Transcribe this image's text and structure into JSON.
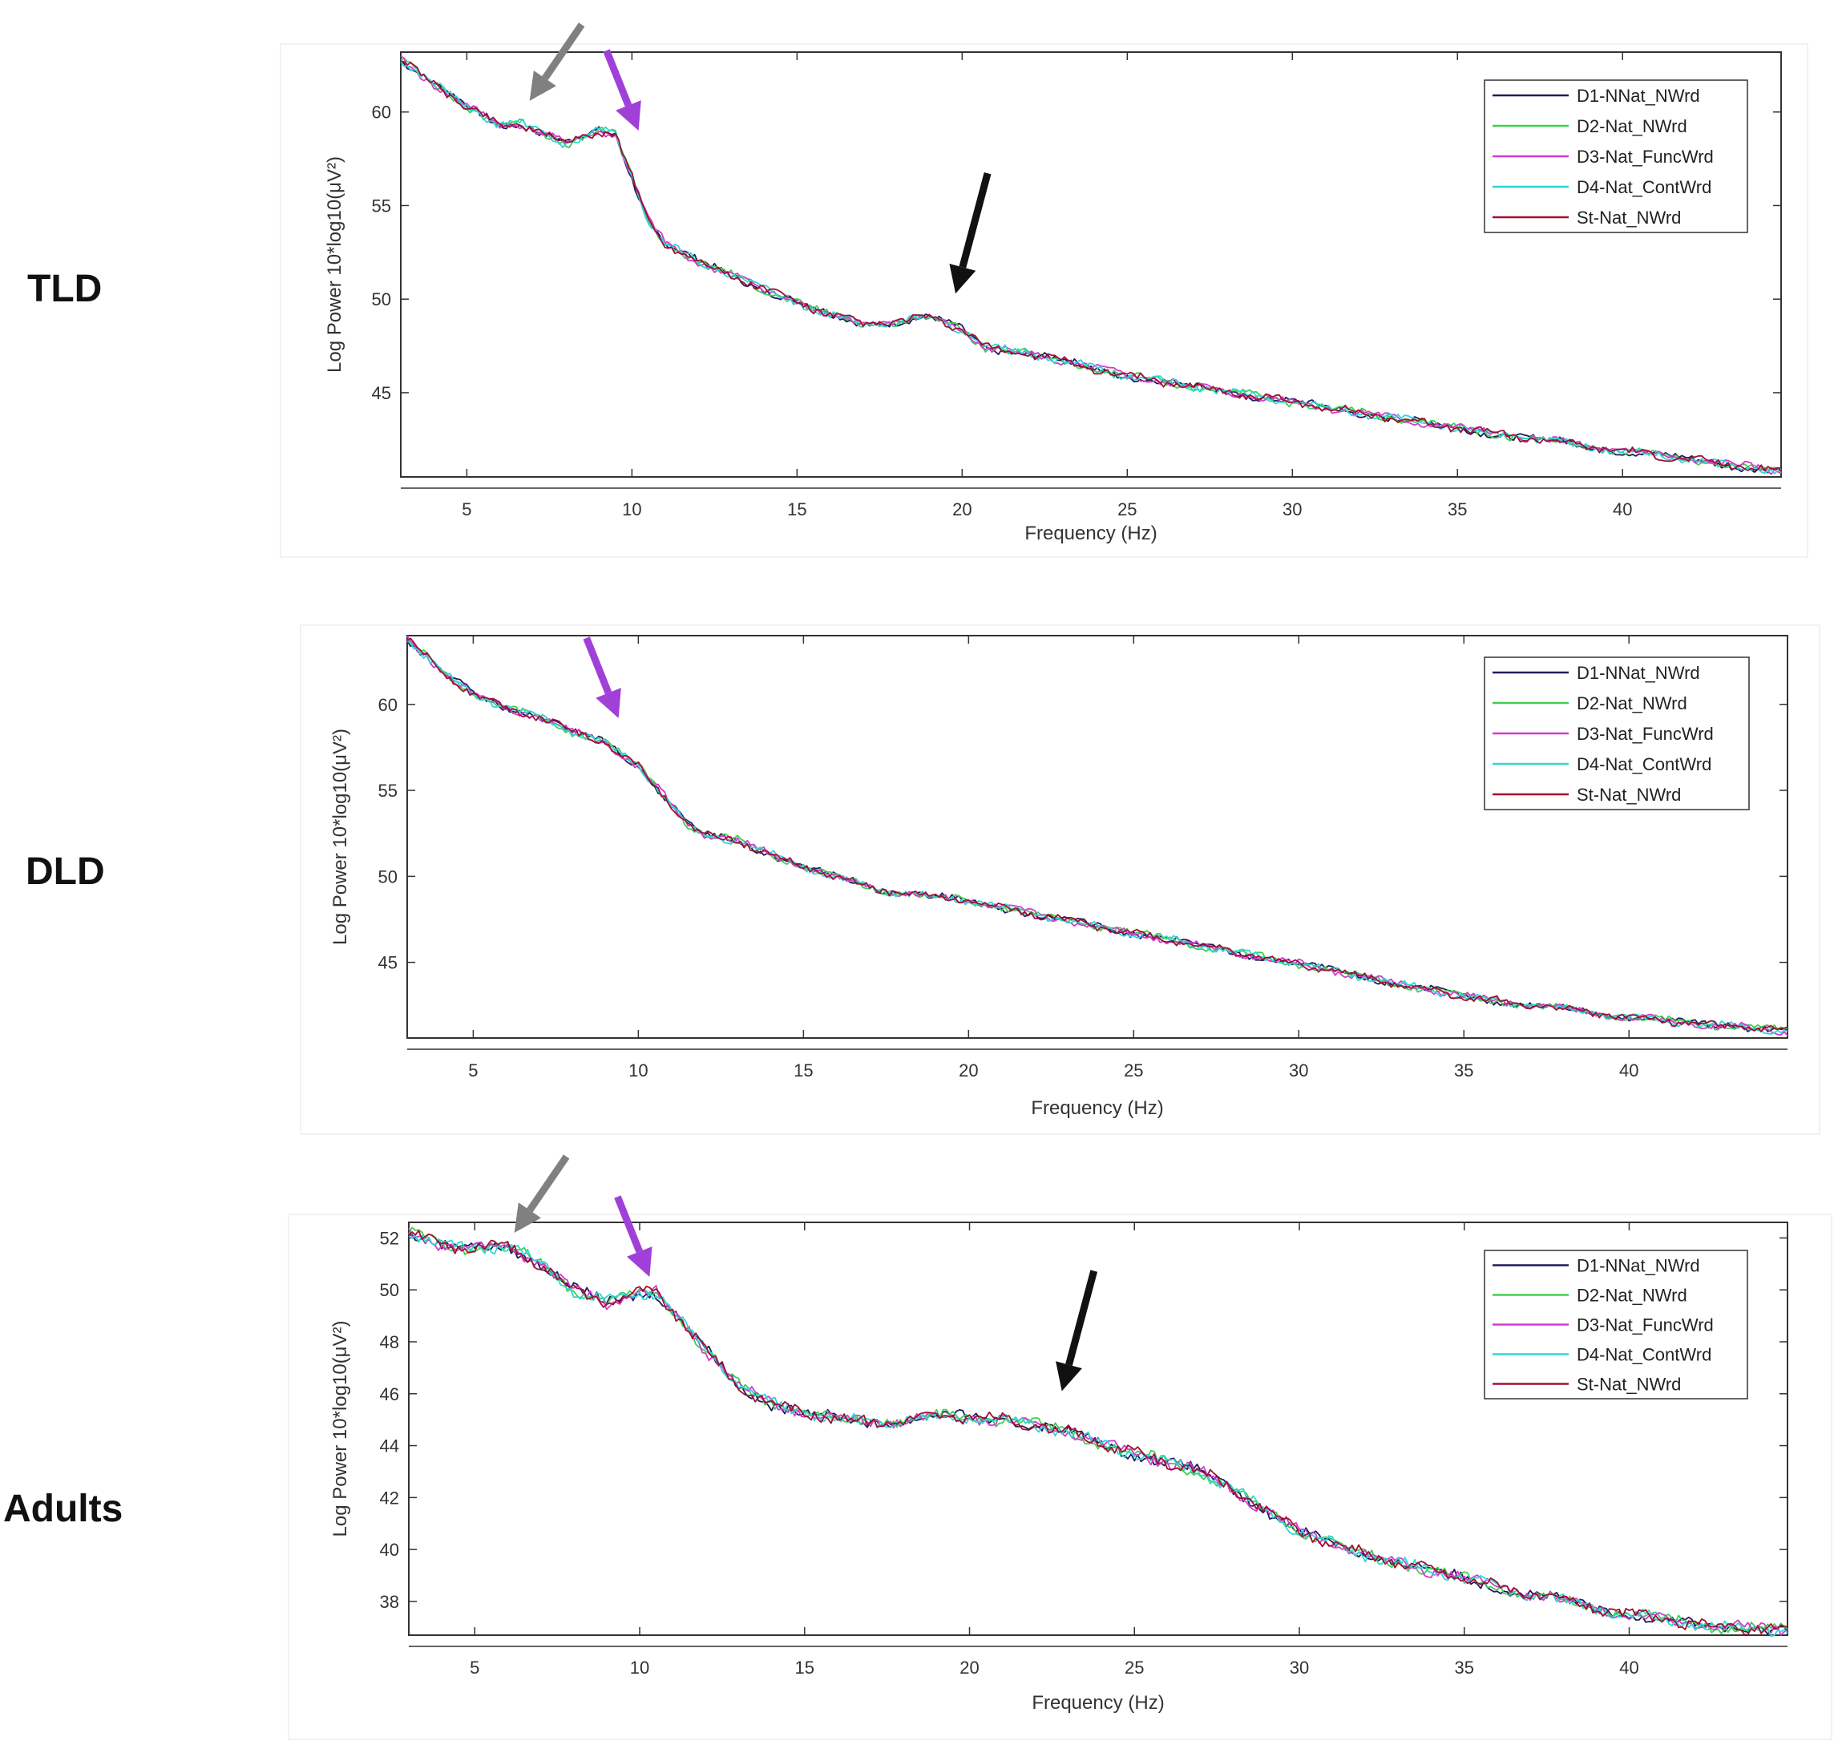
{
  "group_labels": {
    "tld": "TLD",
    "dld": "DLD",
    "adults": "Adults"
  },
  "colors": {
    "D1-NNat_NWrd": "#1c1c5c",
    "D2-Nat_NWrd": "#3fcf4f",
    "D3-Nat_FuncWrd": "#d23bd2",
    "D4-Nat_ContWrd": "#2fd6d6",
    "St-Nat_NWrd": "#a01030",
    "arrow_gray": "#808080",
    "arrow_purple": "#a040d8",
    "arrow_black": "#111111"
  },
  "chart_data": [
    {
      "id": "tld",
      "type": "line",
      "group": "TLD",
      "xlabel": "Frequency (Hz)",
      "ylabel": "Log Power 10*log10(μV²)",
      "xlim": [
        3,
        44.8
      ],
      "ylim": [
        40.5,
        63.2
      ],
      "xticks": [
        5,
        10,
        15,
        20,
        25,
        30,
        35,
        40
      ],
      "yticks": [
        45,
        50,
        55,
        60
      ],
      "legend_position": "top-right",
      "series_names": [
        "D1-NNat_NWrd",
        "D2-Nat_NWrd",
        "D3-Nat_FuncWrd",
        "D4-Nat_ContWrd",
        "St-Nat_NWrd"
      ],
      "base_curve": [
        [
          3,
          62.8
        ],
        [
          4,
          61.5
        ],
        [
          5,
          60.3
        ],
        [
          6,
          59.3
        ],
        [
          6.6,
          59.4
        ],
        [
          7.5,
          58.7
        ],
        [
          8,
          58.3
        ],
        [
          9,
          59.0
        ],
        [
          9.5,
          58.8
        ],
        [
          10,
          56.5
        ],
        [
          10.5,
          54.2
        ],
        [
          11,
          53.0
        ],
        [
          12,
          52.0
        ],
        [
          13,
          51.3
        ],
        [
          14,
          50.5
        ],
        [
          15,
          49.9
        ],
        [
          16,
          49.1
        ],
        [
          17,
          48.7
        ],
        [
          18,
          48.8
        ],
        [
          19,
          49.0
        ],
        [
          20,
          48.4
        ],
        [
          20.7,
          47.4
        ],
        [
          22,
          47.1
        ],
        [
          25,
          45.9
        ],
        [
          30,
          44.5
        ],
        [
          35,
          43.1
        ],
        [
          40,
          41.9
        ],
        [
          44.8,
          40.8
        ]
      ],
      "arrows": [
        {
          "color": "arrow_gray",
          "tip": [
            6.9,
            60.6
          ]
        },
        {
          "color": "arrow_purple",
          "tip": [
            10.2,
            59.0
          ]
        },
        {
          "color": "arrow_black",
          "tip": [
            19.8,
            50.3
          ]
        }
      ]
    },
    {
      "id": "dld",
      "type": "line",
      "group": "DLD",
      "xlabel": "Frequency (Hz)",
      "ylabel": "Log Power 10*log10(μV²)",
      "xlim": [
        3,
        44.8
      ],
      "ylim": [
        40.6,
        64.0
      ],
      "xticks": [
        5,
        10,
        15,
        20,
        25,
        30,
        35,
        40
      ],
      "yticks": [
        45,
        50,
        55,
        60
      ],
      "legend_position": "top-right",
      "series_names": [
        "D1-NNat_NWrd",
        "D2-Nat_NWrd",
        "D3-Nat_FuncWrd",
        "D4-Nat_ContWrd",
        "St-Nat_NWrd"
      ],
      "base_curve": [
        [
          3,
          63.8
        ],
        [
          4,
          62.0
        ],
        [
          5,
          60.6
        ],
        [
          6,
          59.8
        ],
        [
          7,
          59.3
        ],
        [
          8,
          58.4
        ],
        [
          9,
          57.8
        ],
        [
          10,
          56.4
        ],
        [
          11,
          54.2
        ],
        [
          11.5,
          53.0
        ],
        [
          12,
          52.4
        ],
        [
          13,
          52.1
        ],
        [
          14,
          51.3
        ],
        [
          15,
          50.6
        ],
        [
          16,
          49.9
        ],
        [
          17,
          49.4
        ],
        [
          18,
          49.0
        ],
        [
          19,
          48.8
        ],
        [
          20,
          48.6
        ],
        [
          22,
          47.8
        ],
        [
          25,
          46.7
        ],
        [
          30,
          44.9
        ],
        [
          35,
          43.0
        ],
        [
          40,
          41.8
        ],
        [
          44.8,
          41.0
        ]
      ],
      "arrows": [
        {
          "color": "arrow_purple",
          "tip": [
            9.4,
            59.2
          ]
        }
      ]
    },
    {
      "id": "adults",
      "type": "line",
      "group": "Adults",
      "xlabel": "Frequency (Hz)",
      "ylabel": "Log Power 10*log10(μV²)",
      "xlim": [
        3,
        44.8
      ],
      "ylim": [
        36.7,
        52.6
      ],
      "xticks": [
        5,
        10,
        15,
        20,
        25,
        30,
        35,
        40
      ],
      "yticks": [
        38,
        40,
        42,
        44,
        46,
        48,
        50,
        52
      ],
      "legend_position": "top-right",
      "series_names": [
        "D1-NNat_NWrd",
        "D2-Nat_NWrd",
        "D3-Nat_FuncWrd",
        "D4-Nat_ContWrd",
        "St-Nat_NWrd"
      ],
      "base_curve": [
        [
          3,
          52.2
        ],
        [
          4,
          51.7
        ],
        [
          5,
          51.6
        ],
        [
          6,
          51.7
        ],
        [
          7,
          51.0
        ],
        [
          8,
          50.0
        ],
        [
          9,
          49.5
        ],
        [
          10,
          49.9
        ],
        [
          10.5,
          49.9
        ],
        [
          11,
          49.2
        ],
        [
          12,
          47.7
        ],
        [
          13,
          46.3
        ],
        [
          14,
          45.6
        ],
        [
          15,
          45.3
        ],
        [
          16,
          45.0
        ],
        [
          17,
          44.9
        ],
        [
          18,
          45.0
        ],
        [
          19,
          45.1
        ],
        [
          20,
          45.1
        ],
        [
          21,
          45.0
        ],
        [
          22,
          44.8
        ],
        [
          23,
          44.5
        ],
        [
          24,
          44.1
        ],
        [
          25,
          43.7
        ],
        [
          27,
          43.0
        ],
        [
          28,
          42.3
        ],
        [
          29,
          41.5
        ],
        [
          30,
          40.7
        ],
        [
          32,
          39.8
        ],
        [
          35,
          38.9
        ],
        [
          38,
          38.0
        ],
        [
          40,
          37.5
        ],
        [
          42,
          37.1
        ],
        [
          44.8,
          36.9
        ]
      ],
      "arrows": [
        {
          "color": "arrow_gray",
          "tip": [
            6.2,
            52.2
          ]
        },
        {
          "color": "arrow_purple",
          "tip": [
            10.3,
            50.5
          ]
        },
        {
          "color": "arrow_black",
          "tip": [
            22.8,
            46.1
          ]
        }
      ]
    }
  ]
}
